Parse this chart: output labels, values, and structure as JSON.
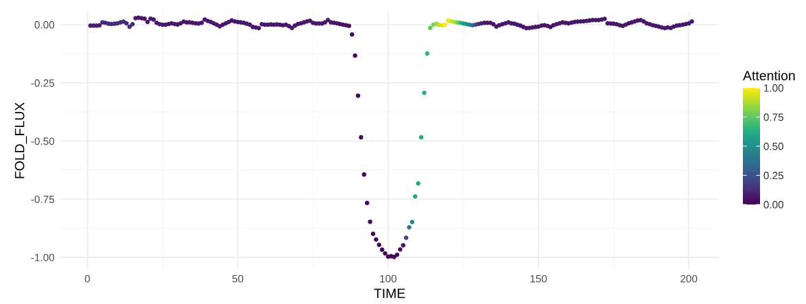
{
  "chart_data": {
    "type": "scatter",
    "xlabel": "TIME",
    "ylabel": "FOLD_FLUX",
    "clabel": "Attention",
    "x": [
      1,
      2,
      3,
      4,
      5,
      6,
      7,
      8,
      9,
      10,
      11,
      12,
      13,
      14,
      15,
      16,
      17,
      18,
      19,
      20,
      21,
      22,
      23,
      24,
      25,
      26,
      27,
      28,
      29,
      30,
      31,
      32,
      33,
      34,
      35,
      36,
      37,
      38,
      39,
      40,
      41,
      42,
      43,
      44,
      45,
      46,
      47,
      48,
      49,
      50,
      51,
      52,
      53,
      54,
      55,
      56,
      57,
      58,
      59,
      60,
      61,
      62,
      63,
      64,
      65,
      66,
      67,
      68,
      69,
      70,
      71,
      72,
      73,
      74,
      75,
      76,
      77,
      78,
      79,
      80,
      81,
      82,
      83,
      84,
      85,
      86,
      87,
      88,
      89,
      90,
      91,
      92,
      93,
      94,
      95,
      96,
      97,
      98,
      99,
      100,
      101,
      102,
      103,
      104,
      105,
      106,
      107,
      108,
      109,
      110,
      111,
      112,
      113,
      114,
      115,
      116,
      117,
      118,
      119,
      120,
      121,
      122,
      123,
      124,
      125,
      126,
      127,
      128,
      129,
      130,
      131,
      132,
      133,
      134,
      135,
      136,
      137,
      138,
      139,
      140,
      141,
      142,
      143,
      144,
      145,
      146,
      147,
      148,
      149,
      150,
      151,
      152,
      153,
      154,
      155,
      156,
      157,
      158,
      159,
      160,
      161,
      162,
      163,
      164,
      165,
      166,
      167,
      168,
      169,
      170,
      171,
      172,
      173,
      174,
      175,
      176,
      177,
      178,
      179,
      180,
      181,
      182,
      183,
      184,
      185,
      186,
      187,
      188,
      189,
      190,
      191,
      192,
      193,
      194,
      195,
      196,
      197,
      198,
      199,
      200,
      201
    ],
    "values": [
      -0.004,
      -0.004,
      -0.004,
      -0.003,
      0.01,
      0.008,
      0.004,
      0.003,
      0.004,
      0.006,
      0.01,
      0.013,
      0.006,
      -0.009,
      0.002,
      0.028,
      0.03,
      0.028,
      0.026,
      0.012,
      0.026,
      0.022,
      0.008,
      0.002,
      0.0,
      0.0,
      0.003,
      0.006,
      0.003,
      0.001,
      0.006,
      0.013,
      0.01,
      0.01,
      0.008,
      0.006,
      0.005,
      0.008,
      0.022,
      0.016,
      0.012,
      0.006,
      0.0,
      -0.007,
      0.0,
      0.006,
      0.012,
      0.018,
      0.014,
      0.012,
      0.01,
      0.008,
      0.004,
      0.0,
      -0.01,
      -0.012,
      -0.015,
      0.002,
      0.0,
      0.0,
      0.001,
      0.0,
      0.001,
      0.0,
      -0.002,
      0.0,
      -0.006,
      -0.014,
      -0.004,
      0.003,
      0.006,
      0.01,
      0.014,
      0.017,
      0.008,
      0.005,
      0.005,
      0.005,
      0.01,
      0.02,
      0.01,
      0.008,
      0.006,
      0.003,
      0.0,
      -0.002,
      -0.005,
      -0.042,
      -0.133,
      -0.305,
      -0.484,
      -0.644,
      -0.766,
      -0.847,
      -0.899,
      -0.923,
      -0.946,
      -0.967,
      -0.983,
      -0.997,
      -0.995,
      -0.998,
      -0.989,
      -0.966,
      -0.948,
      -0.916,
      -0.871,
      -0.848,
      -0.738,
      -0.682,
      -0.484,
      -0.293,
      -0.124,
      -0.014,
      0.0,
      0.004,
      -0.001,
      -0.002,
      0.0,
      0.018,
      0.015,
      0.012,
      0.01,
      0.008,
      0.005,
      0.003,
      0.0,
      -0.002,
      0.0,
      0.003,
      0.006,
      0.008,
      0.008,
      0.008,
      0.002,
      -0.008,
      -0.002,
      0.002,
      0.006,
      0.01,
      0.006,
      0.004,
      0.0,
      -0.004,
      -0.01,
      -0.015,
      -0.014,
      -0.012,
      -0.01,
      -0.008,
      -0.004,
      -0.002,
      -0.005,
      -0.01,
      -0.002,
      0.002,
      0.006,
      0.01,
      0.008,
      0.006,
      0.009,
      0.012,
      0.013,
      0.014,
      0.015,
      0.016,
      0.018,
      0.02,
      0.02,
      0.02,
      0.022,
      0.025,
      0.006,
      0.005,
      0.004,
      0.002,
      -0.002,
      -0.005,
      0.0,
      0.006,
      0.01,
      0.014,
      0.018,
      0.02,
      0.014,
      0.006,
      0.002,
      -0.002,
      -0.005,
      -0.008,
      -0.012,
      -0.015,
      -0.012,
      -0.014,
      -0.008,
      -0.004,
      -0.002,
      0.0,
      0.003,
      0.006,
      0.014
    ],
    "cvalues": [
      0.08,
      0.08,
      0.08,
      0.08,
      0.12,
      0.12,
      0.12,
      0.12,
      0.12,
      0.12,
      0.12,
      0.12,
      0.12,
      0.12,
      0.12,
      0.06,
      0.06,
      0.06,
      0.06,
      0.06,
      0.06,
      0.06,
      0.06,
      0.06,
      0.06,
      0.06,
      0.06,
      0.06,
      0.06,
      0.06,
      0.06,
      0.06,
      0.06,
      0.06,
      0.06,
      0.06,
      0.06,
      0.06,
      0.06,
      0.06,
      0.06,
      0.06,
      0.06,
      0.06,
      0.06,
      0.06,
      0.06,
      0.06,
      0.06,
      0.06,
      0.06,
      0.06,
      0.06,
      0.06,
      0.06,
      0.06,
      0.06,
      0.06,
      0.06,
      0.06,
      0.06,
      0.06,
      0.06,
      0.06,
      0.06,
      0.06,
      0.06,
      0.06,
      0.06,
      0.06,
      0.06,
      0.06,
      0.06,
      0.06,
      0.06,
      0.06,
      0.06,
      0.06,
      0.06,
      0.06,
      0.06,
      0.06,
      0.06,
      0.04,
      0.04,
      0.04,
      0.04,
      0.02,
      0.02,
      0.02,
      0.02,
      0.02,
      0.02,
      0.02,
      0.02,
      0.02,
      0.02,
      0.02,
      0.02,
      0.02,
      0.02,
      0.02,
      0.02,
      0.03,
      0.05,
      0.2,
      0.4,
      0.45,
      0.6,
      0.6,
      0.6,
      0.62,
      0.65,
      0.75,
      0.8,
      0.85,
      0.9,
      0.95,
      1.0,
      0.97,
      0.92,
      0.88,
      0.8,
      0.65,
      0.55,
      0.5,
      0.45,
      0.35,
      0.25,
      0.15,
      0.1,
      0.06,
      0.06,
      0.06,
      0.06,
      0.06,
      0.06,
      0.06,
      0.06,
      0.06,
      0.06,
      0.06,
      0.06,
      0.06,
      0.06,
      0.06,
      0.06,
      0.06,
      0.06,
      0.06,
      0.06,
      0.06,
      0.06,
      0.06,
      0.06,
      0.06,
      0.06,
      0.06,
      0.06,
      0.06,
      0.06,
      0.06,
      0.06,
      0.06,
      0.06,
      0.06,
      0.06,
      0.06,
      0.06,
      0.06,
      0.06,
      0.06,
      0.06,
      0.06,
      0.06,
      0.06,
      0.06,
      0.06,
      0.06,
      0.06,
      0.06,
      0.06,
      0.06,
      0.06,
      0.06,
      0.06,
      0.06,
      0.06,
      0.06,
      0.06,
      0.06,
      0.06,
      0.06,
      0.06,
      0.06,
      0.06,
      0.06,
      0.06,
      0.06,
      0.06,
      0.06
    ],
    "xlim": [
      -9,
      210
    ],
    "ylim": [
      -1.05,
      0.053
    ],
    "xticks": [
      0,
      50,
      100,
      150,
      200
    ],
    "yticks": [
      {
        "value": -1,
        "label": "-1.00"
      },
      {
        "value": -0.75,
        "label": "-0.75"
      },
      {
        "value": -0.5,
        "label": "-0.50"
      },
      {
        "value": -0.25,
        "label": "-0.25"
      },
      {
        "value": 0,
        "label": "0.00"
      }
    ],
    "clim": [
      0,
      1
    ],
    "cticks": [
      {
        "value": 0,
        "label": "0.00"
      },
      {
        "value": 0.25,
        "label": "0.25"
      },
      {
        "value": 0.5,
        "label": "0.50"
      },
      {
        "value": 0.75,
        "label": "0.75"
      },
      {
        "value": 1,
        "label": "1.00"
      }
    ],
    "grid": true,
    "marker": "circle"
  }
}
